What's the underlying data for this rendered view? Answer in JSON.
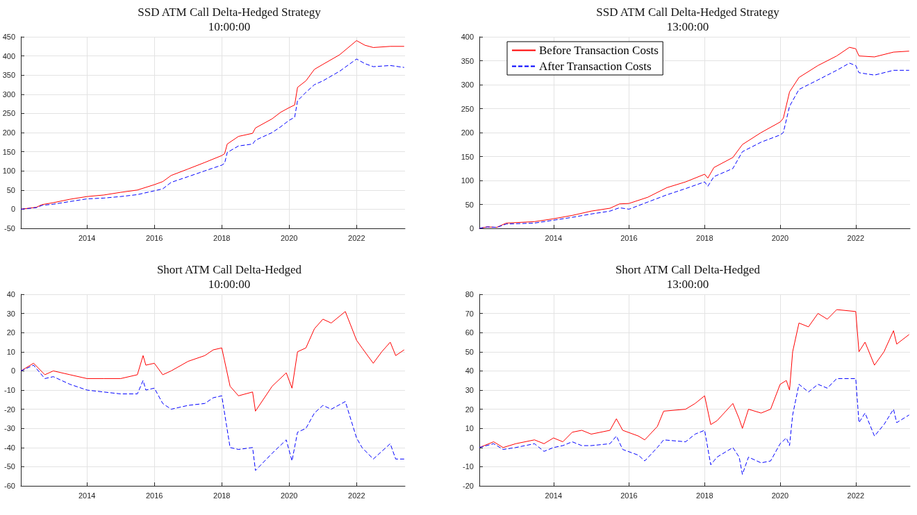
{
  "chart_data": [
    {
      "type": "line",
      "title": "SSD ATM Call Delta-Hedged Strategy",
      "subtitle": "10:00:00",
      "x": [
        "2012-01-15",
        "2012-07",
        "2012-09",
        "2013-01",
        "2013-07",
        "2014-01",
        "2014-07",
        "2015-01",
        "2015-07",
        "2016-01",
        "2016-04",
        "2016-07",
        "2017-01",
        "2017-07",
        "2018-01",
        "2018-02",
        "2018-03",
        "2018-07",
        "2018-12",
        "2019-01",
        "2019-07",
        "2019-10",
        "2020-01",
        "2020-03",
        "2020-04",
        "2020-07",
        "2020-10",
        "2021-01",
        "2021-07",
        "2022-01",
        "2022-04",
        "2022-07",
        "2023-01",
        "2023-06"
      ],
      "series": [
        {
          "color": "#ff0000",
          "line_style": "solid",
          "values": [
            0,
            5,
            12,
            17,
            26,
            33,
            37,
            44,
            50,
            64,
            72,
            88,
            105,
            122,
            140,
            145,
            170,
            190,
            198,
            212,
            236,
            253,
            265,
            272,
            318,
            335,
            365,
            378,
            403,
            440,
            428,
            422,
            425,
            425
          ]
        },
        {
          "color": "#0000ff",
          "line_style": "dashed",
          "values": [
            0,
            4,
            10,
            13,
            20,
            27,
            29,
            33,
            38,
            48,
            53,
            70,
            85,
            100,
            115,
            120,
            148,
            165,
            170,
            180,
            200,
            215,
            232,
            240,
            283,
            305,
            325,
            335,
            360,
            392,
            380,
            372,
            375,
            370
          ]
        }
      ],
      "xlim": [
        "2012-01-15",
        "2023-06-10"
      ],
      "xticks": [
        "2014",
        "2016",
        "2018",
        "2020",
        "2022"
      ],
      "ylim": [
        -50,
        450
      ],
      "yticks": [
        -50,
        0,
        50,
        100,
        150,
        200,
        250,
        300,
        350,
        400,
        450
      ],
      "grid": true,
      "legend": false,
      "marker": "none"
    },
    {
      "type": "line",
      "title": "SSD ATM Call Delta-Hedged Strategy",
      "subtitle": "13:00:00",
      "x": [
        "2012-01-15",
        "2012-04",
        "2012-07",
        "2012-10",
        "2013-07",
        "2014-01",
        "2014-07",
        "2015-01",
        "2015-07",
        "2015-10",
        "2016-01",
        "2016-07",
        "2017-01",
        "2017-07",
        "2018-01",
        "2018-02",
        "2018-04",
        "2018-10",
        "2019-01",
        "2019-07",
        "2020-01",
        "2020-02",
        "2020-04",
        "2020-07",
        "2021-01",
        "2021-07",
        "2021-11",
        "2022-01",
        "2022-02",
        "2022-07",
        "2023-01",
        "2023-06"
      ],
      "series": [
        {
          "name": "Before Transaction Costs",
          "color": "#ff0000",
          "line_style": "solid",
          "values": [
            0,
            3,
            2,
            11,
            14,
            20,
            27,
            36,
            42,
            51,
            52,
            65,
            85,
            97,
            113,
            105,
            127,
            148,
            175,
            200,
            222,
            230,
            285,
            315,
            340,
            360,
            378,
            375,
            360,
            358,
            368,
            370
          ]
        },
        {
          "name": "After Transaction Costs",
          "color": "#0000ff",
          "line_style": "dashed",
          "values": [
            0,
            3,
            2,
            9,
            11,
            17,
            23,
            30,
            36,
            43,
            40,
            55,
            70,
            83,
            97,
            88,
            108,
            125,
            160,
            180,
            195,
            200,
            255,
            290,
            310,
            330,
            345,
            340,
            325,
            320,
            330,
            330
          ]
        }
      ],
      "xlim": [
        "2012-01-15",
        "2023-06-10"
      ],
      "xticks": [
        "2014",
        "2016",
        "2018",
        "2020",
        "2022"
      ],
      "ylim": [
        0,
        400
      ],
      "yticks": [
        0,
        50,
        100,
        150,
        200,
        250,
        300,
        350,
        400
      ],
      "grid": true,
      "legend": "top left",
      "marker": "none"
    },
    {
      "type": "line",
      "title": "Short ATM Call Delta-Hedged",
      "subtitle": "10:00:00",
      "x": [
        "2012-01-15",
        "2012-06",
        "2012-10",
        "2013-01",
        "2013-07",
        "2014-01",
        "2014-07",
        "2015-01",
        "2015-07",
        "2015-09",
        "2015-10",
        "2016-01",
        "2016-04",
        "2016-07",
        "2017-01",
        "2017-07",
        "2017-10",
        "2018-01",
        "2018-04",
        "2018-07",
        "2018-12",
        "2019-01",
        "2019-07",
        "2019-12",
        "2020-02",
        "2020-04",
        "2020-07",
        "2020-10",
        "2021-01",
        "2021-04",
        "2021-09",
        "2022-01",
        "2022-03",
        "2022-07",
        "2022-10",
        "2023-01",
        "2023-03",
        "2023-06"
      ],
      "series": [
        {
          "color": "#ff0000",
          "line_style": "solid",
          "values": [
            0,
            4,
            -2,
            0,
            -2,
            -4,
            -4,
            -4,
            -2,
            8,
            3,
            4,
            -2,
            0,
            5,
            8,
            11,
            12,
            -8,
            -13,
            -11,
            -21,
            -8,
            -1,
            -9,
            10,
            12,
            22,
            27,
            25,
            31,
            16,
            12,
            4,
            10,
            15,
            8,
            11
          ]
        },
        {
          "color": "#0000ff",
          "line_style": "dashed",
          "values": [
            0,
            3,
            -4,
            -3,
            -7,
            -10,
            -11,
            -12,
            -12,
            -5,
            -10,
            -9,
            -17,
            -20,
            -18,
            -17,
            -14,
            -13,
            -40,
            -41,
            -40,
            -52,
            -43,
            -36,
            -47,
            -32,
            -30,
            -22,
            -18,
            -20,
            -16,
            -35,
            -40,
            -46,
            -42,
            -38,
            -46,
            -46
          ]
        }
      ],
      "xlim": [
        "2012-01-15",
        "2023-06-10"
      ],
      "xticks": [
        "2014",
        "2016",
        "2018",
        "2020",
        "2022"
      ],
      "ylim": [
        -60,
        40
      ],
      "yticks": [
        -60,
        -50,
        -40,
        -30,
        -20,
        -10,
        0,
        10,
        20,
        30,
        40
      ],
      "grid": true,
      "legend": false,
      "marker": "none"
    },
    {
      "type": "line",
      "title": "Short ATM Call Delta-Hedged",
      "subtitle": "13:00:00",
      "x": [
        "2012-01-15",
        "2012-06",
        "2012-09",
        "2013-01",
        "2013-07",
        "2013-10",
        "2014-01",
        "2014-04",
        "2014-07",
        "2014-10",
        "2015-01",
        "2015-07",
        "2015-09",
        "2015-11",
        "2016-04",
        "2016-06",
        "2016-10",
        "2016-12",
        "2017-07",
        "2017-10",
        "2018-01",
        "2018-03",
        "2018-05",
        "2018-10",
        "2018-12",
        "2019-01",
        "2019-03",
        "2019-07",
        "2019-10",
        "2020-01",
        "2020-03",
        "2020-04",
        "2020-05",
        "2020-07",
        "2020-10",
        "2021-01",
        "2021-04",
        "2021-07",
        "2022-01",
        "2022-02",
        "2022-04",
        "2022-07",
        "2022-10",
        "2023-01",
        "2023-02",
        "2023-06"
      ],
      "series": [
        {
          "color": "#ff0000",
          "line_style": "solid",
          "values": [
            0,
            3,
            0,
            2,
            4,
            2,
            5,
            3,
            8,
            9,
            7,
            9,
            15,
            9,
            6,
            4,
            11,
            19,
            20,
            23,
            27,
            12,
            14,
            23,
            15,
            10,
            20,
            18,
            20,
            33,
            35,
            30,
            50,
            65,
            63,
            70,
            67,
            72,
            71,
            50,
            55,
            43,
            50,
            61,
            54,
            59
          ]
        },
        {
          "color": "#0000ff",
          "line_style": "dashed",
          "values": [
            0,
            2,
            -1,
            0,
            2,
            -2,
            0,
            1,
            3,
            1,
            1,
            2,
            6,
            -1,
            -4,
            -7,
            0,
            4,
            3,
            7,
            9,
            -9,
            -5,
            0,
            -5,
            -14,
            -5,
            -8,
            -7,
            2,
            5,
            1,
            17,
            33,
            29,
            33,
            31,
            36,
            36,
            13,
            18,
            6,
            12,
            20,
            13,
            17
          ]
        }
      ],
      "xlim": [
        "2012-01-15",
        "2023-06-10"
      ],
      "xticks": [
        "2014",
        "2016",
        "2018",
        "2020",
        "2022"
      ],
      "ylim": [
        -20,
        80
      ],
      "yticks": [
        -20,
        -10,
        0,
        10,
        20,
        30,
        40,
        50,
        60,
        70,
        80
      ],
      "grid": true,
      "legend": false,
      "marker": "none"
    }
  ]
}
